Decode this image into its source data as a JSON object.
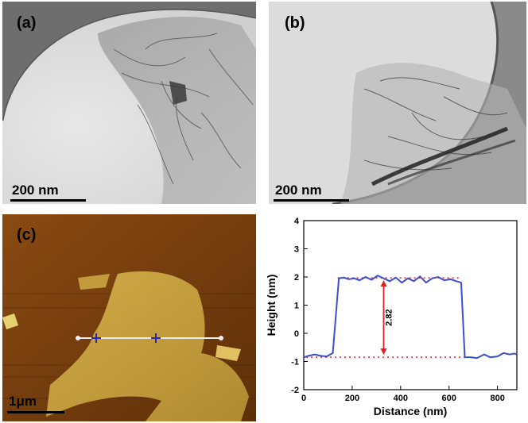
{
  "panels": {
    "a": {
      "label": "(a)",
      "scale_label": "200 nm"
    },
    "b": {
      "label": "(b)",
      "scale_label": "200 nm"
    },
    "c": {
      "label": "(c)",
      "scale_label": "1μm"
    }
  },
  "colors": {
    "line": "#3a4fd0",
    "annotation": "#e02020",
    "afm_dark": "#6b3a0c",
    "afm_light": "#c8a040"
  },
  "chart_data": {
    "type": "line",
    "xlabel": "Distance (nm)",
    "ylabel": "Height (nm)",
    "xlim": [
      0,
      880
    ],
    "ylim": [
      -2,
      4
    ],
    "xticks": [
      0,
      200,
      400,
      600,
      800
    ],
    "yticks": [
      -2,
      -1,
      0,
      1,
      2,
      3,
      4
    ],
    "series": [
      {
        "x": [
          0,
          20,
          45,
          70,
          95,
          120,
          145,
          165,
          185,
          210,
          230,
          255,
          280,
          305,
          330,
          355,
          380,
          405,
          430,
          455,
          480,
          505,
          530,
          555,
          580,
          605,
          630,
          650,
          665,
          690,
          715,
          745,
          770,
          800,
          825,
          850,
          870,
          880
        ],
        "y": [
          -0.85,
          -0.8,
          -0.75,
          -0.8,
          -0.82,
          -0.7,
          1.95,
          1.98,
          1.92,
          1.95,
          1.88,
          2.0,
          1.9,
          2.05,
          1.95,
          1.85,
          1.98,
          1.8,
          1.95,
          1.85,
          2.02,
          1.8,
          1.95,
          2.0,
          1.88,
          1.92,
          1.85,
          1.8,
          -0.85,
          -0.85,
          -0.88,
          -0.75,
          -0.85,
          -0.82,
          -0.7,
          -0.75,
          -0.72,
          -0.75
        ]
      }
    ],
    "annotation": {
      "label": "2.82",
      "y_top": 1.97,
      "y_bottom": -0.85,
      "x": 330
    }
  }
}
